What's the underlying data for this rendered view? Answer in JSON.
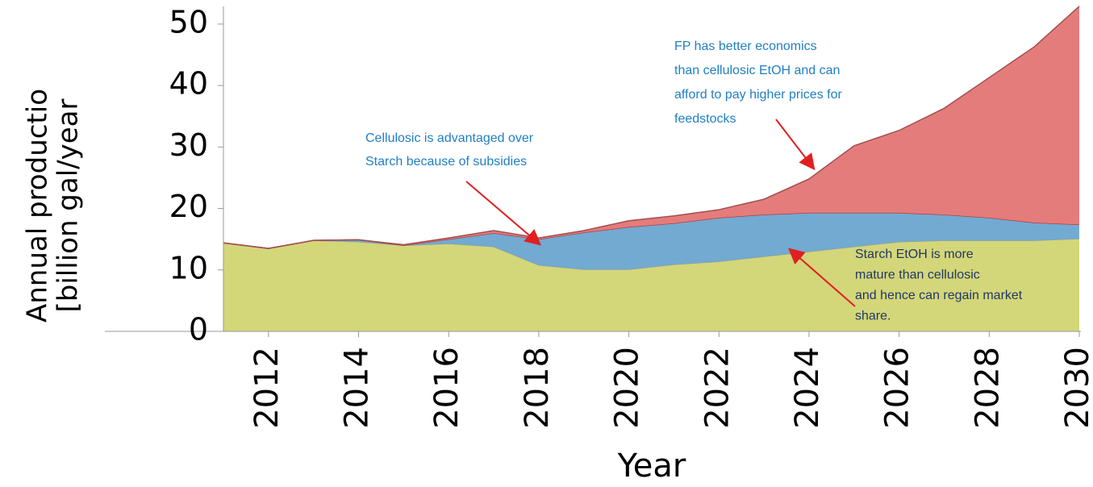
{
  "chart_data": {
    "type": "stacked-area",
    "x_label": "Year",
    "y_label": [
      "Annual productio",
      "[billion gal/year"
    ],
    "x": [
      2011,
      2012,
      2013,
      2014,
      2015,
      2016,
      2017,
      2018,
      2019,
      2020,
      2021,
      2022,
      2023,
      2024,
      2025,
      2026,
      2027,
      2028,
      2029,
      2030
    ],
    "series": [
      {
        "color": "#d4d67a",
        "line_color": "#8aa0a0",
        "values": [
          14.4,
          13.5,
          14.8,
          14.6,
          14.0,
          14.3,
          13.8,
          10.8,
          10.1,
          10.1,
          10.9,
          11.4,
          12.2,
          13.0,
          13.8,
          14.6,
          14.8,
          14.8,
          14.8,
          15.1
        ]
      },
      {
        "color": "#72aad2",
        "line_color": "#b04040",
        "values": [
          0,
          0,
          0,
          0.3,
          0,
          0.7,
          2.2,
          4.2,
          6.0,
          6.9,
          6.7,
          7.1,
          6.8,
          6.3,
          5.5,
          4.7,
          4.2,
          3.7,
          2.9,
          2.3
        ]
      },
      {
        "color": "#e57c7c",
        "line_color": "#a05050",
        "values": [
          0,
          0,
          0,
          0,
          0.1,
          0.2,
          0.4,
          0.2,
          0.3,
          1.0,
          1.2,
          1.3,
          2.5,
          5.5,
          10.9,
          13.4,
          17.3,
          22.8,
          28.6,
          35.5
        ]
      }
    ],
    "xlim": [
      2011,
      2030
    ],
    "xticks": [
      2012,
      2014,
      2016,
      2018,
      2020,
      2022,
      2024,
      2026,
      2028,
      2030
    ],
    "ylim": [
      0,
      53
    ],
    "yticks": [
      0,
      10,
      20,
      30,
      40,
      50
    ],
    "annotations": [
      {
        "lines": [
          "FP has better economics",
          "than cellulosic EtOH and can",
          "afford to pay higher prices for",
          "feedstocks"
        ],
        "color": "#1f7fc4"
      },
      {
        "lines": [
          "Cellulosic is advantaged over",
          "Starch because of subsidies"
        ],
        "color": "#1f7fc4"
      },
      {
        "lines": [
          "Starch EtOH is more",
          "mature than cellulosic",
          "and hence can regain market",
          "share."
        ],
        "color": "#1f3864"
      }
    ]
  }
}
